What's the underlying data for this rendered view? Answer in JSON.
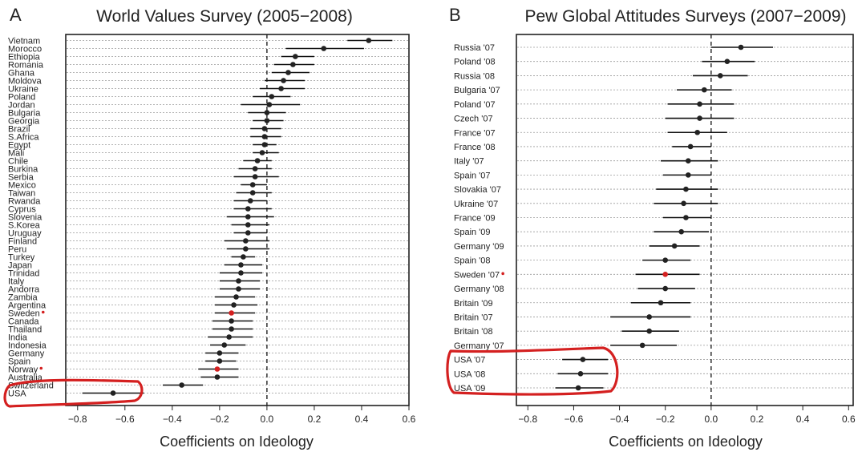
{
  "chart_data": [
    {
      "type": "scatter",
      "panel_label": "A",
      "title": "World Values Survey (2005−2008)",
      "xlabel": "Coefficients on Ideology",
      "ylabel": "",
      "xlim": [
        -0.85,
        0.6
      ],
      "xticks": [
        "−0.8",
        "−0.6",
        "−0.4",
        "−0.2",
        "0.0",
        "0.2",
        "0.4",
        "0.6"
      ],
      "xtick_values": [
        -0.8,
        -0.6,
        -0.4,
        -0.2,
        0.0,
        0.2,
        0.4,
        0.6
      ],
      "reference_line": 0,
      "grid": "dotted horizontal",
      "point_color": "#222222",
      "highlight_color": "#d42020",
      "circled": [
        "USA"
      ],
      "categories": [
        "Vietnam",
        "Morocco",
        "Ethiopia",
        "Romania",
        "Ghana",
        "Moldova",
        "Ukraine",
        "Poland",
        "Jordan",
        "Bulgaria",
        "Georgia",
        "Brazil",
        "S.Africa",
        "Egypt",
        "Mali",
        "Chile",
        "Burkina",
        "Serbia",
        "Mexico",
        "Taiwan",
        "Rwanda",
        "Cyprus",
        "Slovenia",
        "S.Korea",
        "Uruguay",
        "Finland",
        "Peru",
        "Turkey",
        "Japan",
        "Trinidad",
        "Italy",
        "Andorra",
        "Zambia",
        "Argentina",
        "Sweden",
        "Canada",
        "Thailand",
        "India",
        "Indonesia",
        "Germany",
        "Spain",
        "Norway",
        "Australia",
        "Switzerland",
        "USA"
      ],
      "values": [
        0.43,
        0.24,
        0.12,
        0.11,
        0.09,
        0.07,
        0.06,
        0.02,
        0.01,
        0.0,
        0.0,
        -0.01,
        -0.01,
        -0.01,
        -0.02,
        -0.04,
        -0.05,
        -0.05,
        -0.06,
        -0.06,
        -0.07,
        -0.08,
        -0.08,
        -0.08,
        -0.08,
        -0.09,
        -0.09,
        -0.1,
        -0.11,
        -0.11,
        -0.12,
        -0.12,
        -0.13,
        -0.14,
        -0.15,
        -0.15,
        -0.15,
        -0.16,
        -0.18,
        -0.2,
        -0.2,
        -0.21,
        -0.21,
        -0.36,
        -0.65
      ],
      "ci_low": [
        0.34,
        0.08,
        0.06,
        0.03,
        0.02,
        -0.01,
        -0.03,
        -0.06,
        -0.11,
        -0.08,
        -0.06,
        -0.07,
        -0.07,
        -0.06,
        -0.06,
        -0.1,
        -0.12,
        -0.14,
        -0.11,
        -0.13,
        -0.14,
        -0.14,
        -0.17,
        -0.15,
        -0.14,
        -0.18,
        -0.17,
        -0.15,
        -0.18,
        -0.2,
        -0.2,
        -0.2,
        -0.22,
        -0.22,
        -0.22,
        -0.23,
        -0.23,
        -0.25,
        -0.24,
        -0.26,
        -0.26,
        -0.29,
        -0.28,
        -0.44,
        -0.78
      ],
      "ci_high": [
        0.53,
        0.41,
        0.2,
        0.2,
        0.18,
        0.16,
        0.16,
        0.1,
        0.14,
        0.08,
        0.07,
        0.06,
        0.06,
        0.04,
        0.05,
        0.02,
        0.02,
        0.05,
        0.0,
        0.02,
        0.0,
        0.02,
        0.03,
        0.01,
        0.0,
        0.01,
        0.01,
        -0.05,
        -0.02,
        -0.02,
        -0.03,
        -0.03,
        -0.05,
        -0.04,
        -0.05,
        -0.06,
        -0.06,
        -0.06,
        -0.09,
        -0.12,
        -0.13,
        -0.12,
        -0.12,
        -0.27,
        -0.52
      ],
      "highlight": [
        "Sweden",
        "Norway"
      ]
    },
    {
      "type": "scatter",
      "panel_label": "B",
      "title": "Pew Global Attitudes Surveys (2007−2009)",
      "xlabel": "Coefficients on Ideology",
      "ylabel": "",
      "xlim": [
        -0.85,
        0.62
      ],
      "xticks": [
        "−0.8",
        "−0.6",
        "−0.4",
        "−0.2",
        "0.0",
        "0.2",
        "0.4",
        "0.6"
      ],
      "xtick_values": [
        -0.8,
        -0.6,
        -0.4,
        -0.2,
        0.0,
        0.2,
        0.4,
        0.6
      ],
      "reference_line": 0,
      "grid": "dotted horizontal",
      "point_color": "#222222",
      "highlight_color": "#d42020",
      "circled": [
        "USA '07",
        "USA '08",
        "USA '09"
      ],
      "categories": [
        "Russia '07",
        "Poland '08",
        "Russia '08",
        "Bulgaria '07",
        "Poland '07",
        "Czech '07",
        "France '07",
        "France '08",
        "Italy '07",
        "Spain '07",
        "Slovakia '07",
        "Ukraine '07",
        "France '09",
        "Spain '09",
        "Germany '09",
        "Spain '08",
        "Sweden '07",
        "Germany '08",
        "Britain '09",
        "Britain '07",
        "Britain '08",
        "Germany '07",
        "USA '07",
        "USA '08",
        "USA '09"
      ],
      "values": [
        0.13,
        0.07,
        0.04,
        -0.03,
        -0.05,
        -0.05,
        -0.06,
        -0.09,
        -0.1,
        -0.1,
        -0.11,
        -0.12,
        -0.11,
        -0.13,
        -0.16,
        -0.2,
        -0.2,
        -0.2,
        -0.22,
        -0.27,
        -0.27,
        -0.3,
        -0.56,
        -0.57,
        -0.58
      ],
      "ci_low": [
        0.0,
        -0.04,
        -0.08,
        -0.15,
        -0.19,
        -0.2,
        -0.19,
        -0.17,
        -0.22,
        -0.21,
        -0.24,
        -0.25,
        -0.21,
        -0.25,
        -0.27,
        -0.3,
        -0.33,
        -0.32,
        -0.35,
        -0.44,
        -0.39,
        -0.44,
        -0.65,
        -0.67,
        -0.68
      ],
      "ci_high": [
        0.27,
        0.19,
        0.16,
        0.09,
        0.1,
        0.1,
        0.07,
        0.0,
        0.03,
        0.0,
        0.03,
        0.03,
        0.0,
        -0.01,
        -0.05,
        -0.09,
        -0.05,
        -0.07,
        -0.09,
        -0.09,
        -0.14,
        -0.15,
        -0.45,
        -0.45,
        -0.47
      ],
      "highlight": [
        "Sweden '07"
      ]
    }
  ]
}
